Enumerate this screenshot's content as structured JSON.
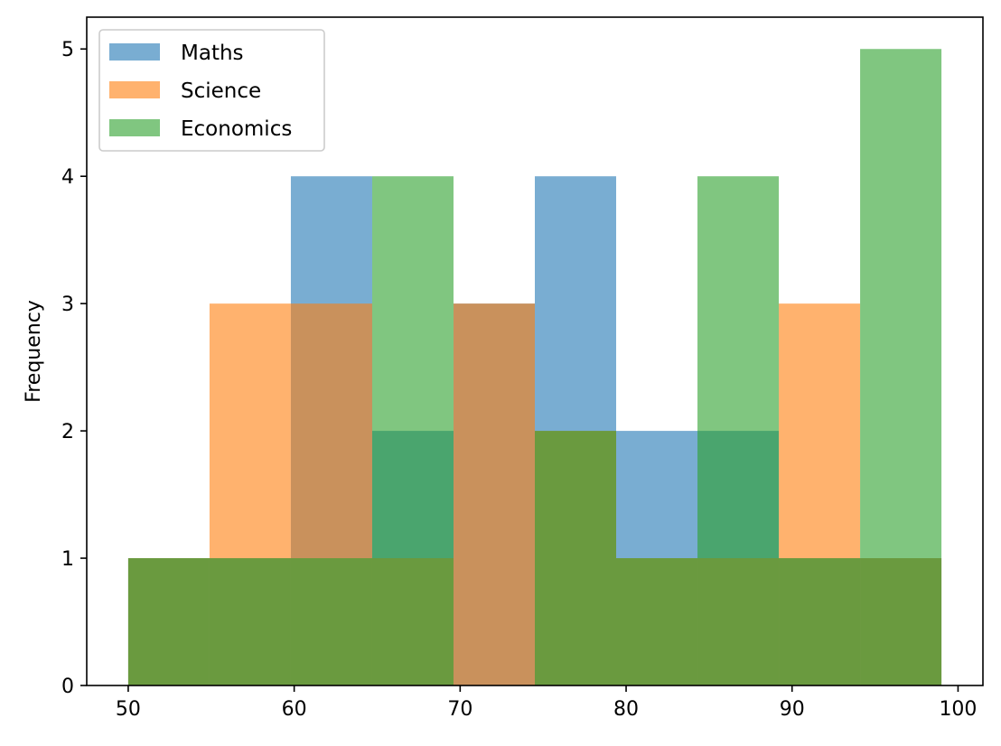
{
  "chart_data": {
    "type": "bar",
    "title": "",
    "xlabel": "",
    "ylabel": "Frequency",
    "xlim": [
      47.5,
      101.5
    ],
    "ylim": [
      0,
      5.25
    ],
    "x_ticks": [
      50,
      60,
      70,
      80,
      90,
      100
    ],
    "y_ticks": [
      0,
      1,
      2,
      3,
      4,
      5
    ],
    "grid": false,
    "legend_position": "top-left",
    "bar_opacity": 0.6,
    "bin_edges": [
      50,
      54.9,
      59.8,
      64.7,
      69.6,
      74.5,
      79.4,
      84.3,
      89.2,
      94.1,
      99
    ],
    "series": [
      {
        "name": "Maths",
        "color": "#1f77b4",
        "values": [
          1,
          1,
          4,
          2,
          3,
          4,
          2,
          2,
          1,
          1
        ]
      },
      {
        "name": "Science",
        "color": "#ff7f0e",
        "values": [
          1,
          3,
          3,
          1,
          3,
          2,
          1,
          1,
          3,
          1
        ]
      },
      {
        "name": "Economics",
        "color": "#2ca02c",
        "values": [
          1,
          1,
          1,
          4,
          0,
          2,
          1,
          4,
          1,
          5
        ]
      }
    ]
  }
}
